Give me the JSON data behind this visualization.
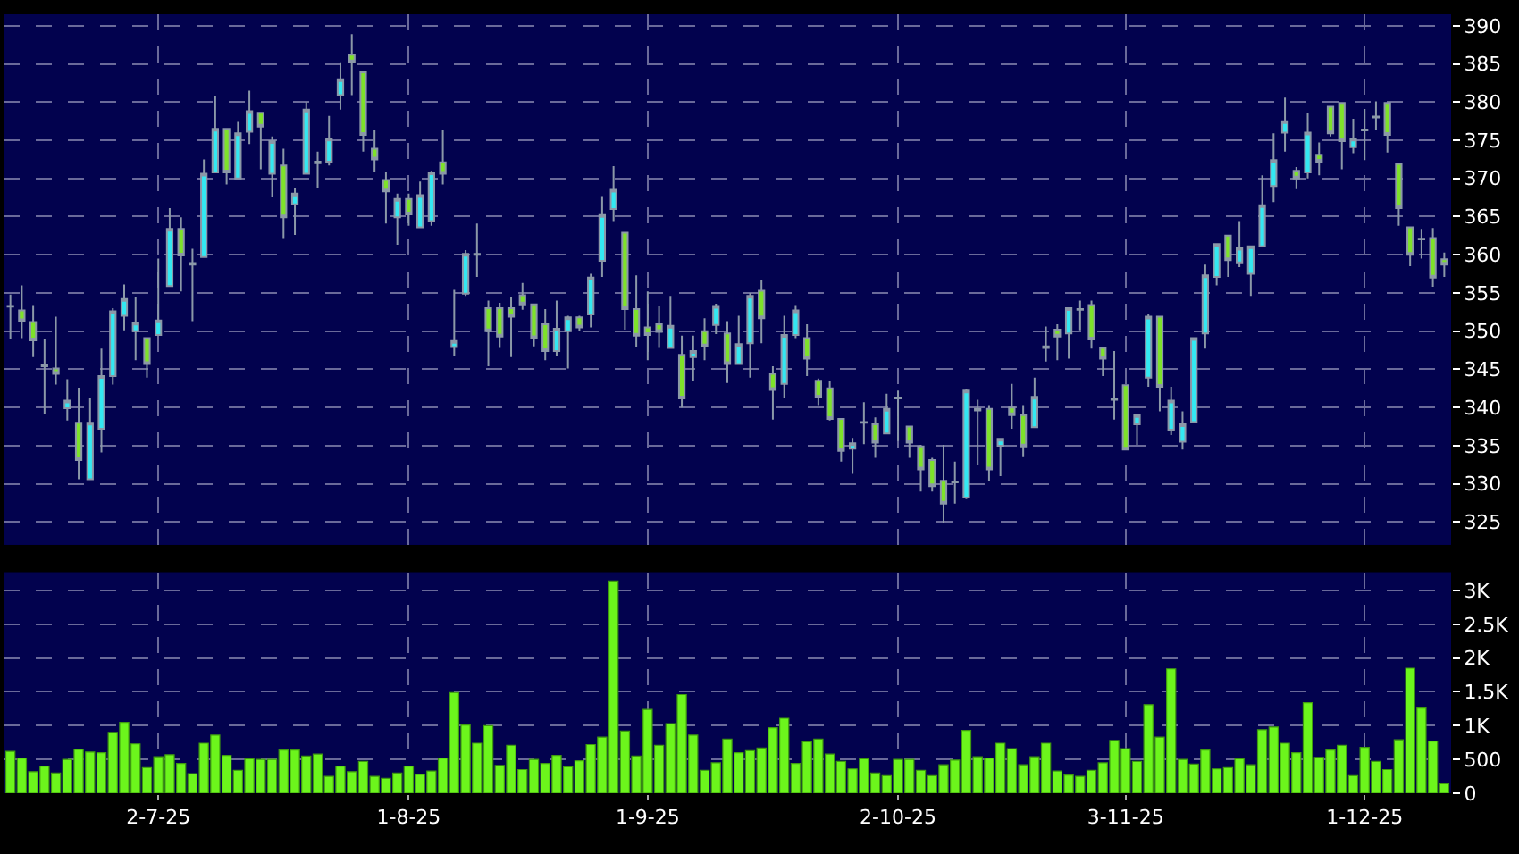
{
  "chart_data": [
    {
      "type": "candlestick",
      "categories": [
        null,
        null,
        null,
        null,
        null,
        null,
        null,
        null,
        null,
        null,
        null,
        null,
        null,
        null,
        null,
        null,
        null,
        null,
        null,
        null,
        null,
        null,
        null,
        null,
        null,
        null,
        null,
        null,
        null,
        null,
        null,
        null,
        null,
        null,
        null,
        null,
        null,
        null,
        null,
        null,
        null,
        null,
        null,
        null,
        null,
        null,
        null,
        null,
        null,
        null,
        null,
        null,
        null,
        null,
        null,
        null,
        null,
        null,
        null,
        null,
        null,
        null,
        null,
        null,
        null,
        null,
        null,
        null,
        null,
        null,
        null,
        null,
        null,
        null,
        null,
        null,
        null,
        null,
        null,
        null,
        null,
        null,
        null,
        null,
        null,
        null,
        null,
        null,
        null,
        null,
        null,
        null,
        null,
        null,
        null,
        null,
        null,
        null,
        null,
        null,
        null,
        null,
        null,
        null,
        null,
        null,
        null,
        null,
        null,
        null,
        null,
        null,
        null,
        null,
        null,
        null,
        null,
        null,
        null,
        null,
        null,
        null,
        null,
        null,
        null,
        null,
        null
      ],
      "ohlc": [
        [
          353.2,
          354.8,
          348.9,
          353.3
        ],
        [
          352.7,
          356,
          349.1,
          351.3
        ],
        [
          351.2,
          353.4,
          346.6,
          348.8
        ],
        [
          345.4,
          348.9,
          339.2,
          345.6
        ],
        [
          345.1,
          351.9,
          343,
          344.4
        ],
        [
          339.9,
          343.7,
          338.3,
          340.9
        ],
        [
          338,
          342.6,
          330.6,
          333.1
        ],
        [
          330.6,
          341.2,
          330.6,
          338
        ],
        [
          337.2,
          347.7,
          334.1,
          344.1
        ],
        [
          344.1,
          353,
          343,
          352.6
        ],
        [
          352,
          356.1,
          350.1,
          354.2
        ],
        [
          350,
          354.4,
          346.2,
          351.1
        ],
        [
          349.1,
          349.1,
          343.9,
          345.7
        ],
        [
          349.5,
          359.5,
          349.5,
          351.4
        ],
        [
          355.9,
          366.1,
          355.9,
          363.4
        ],
        [
          363.4,
          364.9,
          355.2,
          359.9
        ],
        [
          358.9,
          360.8,
          351.3,
          358.7
        ],
        [
          359.7,
          372.5,
          359.7,
          370.6
        ],
        [
          370.8,
          380.8,
          370.8,
          376.5
        ],
        [
          376.5,
          376.5,
          369.2,
          370.8
        ],
        [
          370,
          377.4,
          370,
          375.9
        ],
        [
          376.1,
          381.5,
          374.5,
          378.8
        ],
        [
          378.6,
          378.6,
          371.2,
          376.8
        ],
        [
          370.6,
          375.5,
          367.6,
          374.9
        ],
        [
          371.7,
          373.9,
          362.2,
          364.9
        ],
        [
          366.6,
          368.8,
          362.6,
          368
        ],
        [
          370.6,
          380,
          370.6,
          379
        ],
        [
          372,
          373.5,
          368.8,
          372.2
        ],
        [
          372.2,
          378.2,
          371.7,
          375.2
        ],
        [
          380.9,
          385.2,
          379,
          383
        ],
        [
          386.2,
          388.9,
          380.9,
          385.2
        ],
        [
          383.9,
          384,
          373.5,
          375.7
        ],
        [
          373.9,
          376.4,
          370.8,
          372.5
        ],
        [
          369.8,
          370.8,
          364.1,
          368.3
        ],
        [
          364.9,
          368,
          361.3,
          367.3
        ],
        [
          367.3,
          368,
          363.8,
          365.3
        ],
        [
          363.6,
          369.6,
          363.5,
          367.8
        ],
        [
          364.4,
          371,
          363.8,
          370.8
        ],
        [
          372.1,
          376.4,
          369.2,
          370.6
        ],
        [
          347.9,
          355.4,
          346.8,
          348.7
        ],
        [
          354.9,
          360.6,
          354.6,
          360.1
        ],
        [
          360,
          364.1,
          357.1,
          360.1
        ],
        [
          353,
          354,
          345.4,
          350
        ],
        [
          353,
          353.7,
          347.8,
          349.3
        ],
        [
          353,
          354.4,
          346.6,
          351.9
        ],
        [
          354.7,
          356.3,
          352.8,
          353.5
        ],
        [
          353.5,
          353.6,
          348,
          349.1
        ],
        [
          350.9,
          352.9,
          346.2,
          347.4
        ],
        [
          347.4,
          354,
          346.7,
          350.3
        ],
        [
          350,
          352,
          345.1,
          351.8
        ],
        [
          351.8,
          352,
          350,
          350.5
        ],
        [
          352.2,
          357.5,
          350.5,
          357
        ],
        [
          359.2,
          367.7,
          357.1,
          365.2
        ],
        [
          366,
          371.6,
          364.4,
          368.5
        ],
        [
          362.9,
          363,
          350.2,
          352.9
        ],
        [
          352.9,
          357.3,
          347.9,
          349.4
        ],
        [
          350.5,
          355.2,
          346.2,
          349.5
        ],
        [
          350.9,
          353.3,
          347.8,
          349.9
        ],
        [
          347.8,
          354.6,
          347.7,
          350.7
        ],
        [
          346.9,
          349.4,
          340,
          341.2
        ],
        [
          346.6,
          349.4,
          343.5,
          347.4
        ],
        [
          350,
          351.7,
          346.2,
          348
        ],
        [
          350.8,
          353.6,
          349.6,
          353.3
        ],
        [
          349.7,
          351.3,
          343.2,
          345.7
        ],
        [
          345.7,
          352,
          345.7,
          348.3
        ],
        [
          348.4,
          355,
          343.9,
          354.6
        ],
        [
          355.3,
          356.7,
          348.4,
          351.7
        ],
        [
          344.4,
          345.4,
          338.4,
          342.3
        ],
        [
          343.1,
          352,
          341.2,
          349.5
        ],
        [
          349.5,
          353.4,
          349.1,
          352.7
        ],
        [
          349.1,
          350.9,
          344.1,
          346.4
        ],
        [
          343.5,
          343.8,
          340.3,
          341.3
        ],
        [
          342.5,
          343.5,
          338.3,
          338.5
        ],
        [
          338.5,
          338.6,
          332.9,
          334.3
        ],
        [
          334.6,
          336,
          331.3,
          335.3
        ],
        [
          338,
          340.7,
          335.2,
          338.1
        ],
        [
          337.8,
          338.7,
          333.4,
          335.4
        ],
        [
          336.6,
          341.8,
          336.5,
          339.8
        ],
        [
          341.2,
          342.2,
          335.6,
          341.3
        ],
        [
          337.5,
          337.6,
          333.4,
          335.4
        ],
        [
          334.9,
          335.1,
          329,
          331.9
        ],
        [
          333.1,
          333.4,
          329,
          329.7
        ],
        [
          330.4,
          335.1,
          324.9,
          327.4
        ],
        [
          330.2,
          332.9,
          327.4,
          330.3
        ],
        [
          328.2,
          342.4,
          328,
          342.2
        ],
        [
          339.8,
          341,
          332.5,
          339.6
        ],
        [
          339.8,
          340.3,
          330.3,
          331.9
        ],
        [
          335,
          336,
          331,
          335.9
        ],
        [
          340,
          343.1,
          337.2,
          339
        ],
        [
          339,
          340.3,
          333.5,
          334.9
        ],
        [
          337.4,
          343.9,
          337.3,
          341.4
        ],
        [
          347.8,
          350.6,
          346,
          348
        ],
        [
          350.2,
          350.9,
          346.2,
          349.3
        ],
        [
          349.7,
          353.1,
          346.4,
          353
        ],
        [
          352.8,
          354,
          350.1,
          352.9
        ],
        [
          353.4,
          354,
          347.7,
          348.9
        ],
        [
          347.8,
          347.9,
          344.1,
          346.4
        ],
        [
          341,
          347.4,
          338.4,
          341.1
        ],
        [
          342.9,
          342.9,
          334.5,
          334.5
        ],
        [
          337.8,
          339.1,
          335.1,
          339
        ],
        [
          343.9,
          352.2,
          342.7,
          351.9
        ],
        [
          351.9,
          352,
          339.5,
          342.7
        ],
        [
          337.1,
          342.7,
          336.4,
          340.9
        ],
        [
          335.5,
          339.5,
          334.5,
          337.8
        ],
        [
          338.1,
          349.1,
          338.1,
          349.1
        ],
        [
          349.7,
          358.7,
          347.7,
          357.3
        ],
        [
          357.1,
          361.5,
          356,
          361.4
        ],
        [
          362.5,
          362.6,
          357.1,
          359.3
        ],
        [
          359,
          364.4,
          358.4,
          360.9
        ],
        [
          357.5,
          361.2,
          354.6,
          361.1
        ],
        [
          361.1,
          370.4,
          361.1,
          366.5
        ],
        [
          369,
          375.9,
          366.9,
          372.4
        ],
        [
          376,
          380.6,
          373.5,
          377.5
        ],
        [
          371,
          371.5,
          368.6,
          370
        ],
        [
          370.8,
          378.6,
          370,
          376
        ],
        [
          373.1,
          374.7,
          370.4,
          372.2
        ],
        [
          379.4,
          379.5,
          375.5,
          375.9
        ],
        [
          379.9,
          380,
          371.2,
          374.9
        ],
        [
          374.1,
          377.8,
          373.3,
          375.2
        ],
        [
          376.3,
          379.1,
          372.4,
          376.4
        ],
        [
          378,
          380.1,
          376.3,
          378.1
        ],
        [
          379.9,
          380,
          373.4,
          375.7
        ],
        [
          371.9,
          372,
          363.8,
          366.1
        ],
        [
          363.6,
          363.7,
          358.5,
          360
        ],
        [
          362,
          363.4,
          359.5,
          362.1
        ],
        [
          362.2,
          363.5,
          355.8,
          357
        ],
        [
          359.4,
          360.3,
          357.1,
          358.7
        ]
      ],
      "colors": [
        "#8b98a8",
        "#7ee22a",
        "#7ee22a",
        "#8b98a8",
        "#7ee22a",
        "#33e8f2",
        "#7ee22a",
        "#33e8f2",
        "#33e8f2",
        "#33e8f2",
        "#33e8f2",
        "#33e8f2",
        "#7ee22a",
        "#33e8f2",
        "#33e8f2",
        "#7ee22a",
        "#8b98a8",
        "#33e8f2",
        "#33e8f2",
        "#7ee22a",
        "#33e8f2",
        "#33e8f2",
        "#7ee22a",
        "#33e8f2",
        "#7ee22a",
        "#33e8f2",
        "#33e8f2",
        "#8b98a8",
        "#33e8f2",
        "#33e8f2",
        "#7ee22a",
        "#7ee22a",
        "#7ee22a",
        "#7ee22a",
        "#33e8f2",
        "#7ee22a",
        "#33e8f2",
        "#33e8f2",
        "#7ee22a",
        "#33e8f2",
        "#33e8f2",
        "#8b98a8",
        "#7ee22a",
        "#7ee22a",
        "#7ee22a",
        "#7ee22a",
        "#7ee22a",
        "#7ee22a",
        "#33e8f2",
        "#33e8f2",
        "#7ee22a",
        "#33e8f2",
        "#33e8f2",
        "#33e8f2",
        "#7ee22a",
        "#7ee22a",
        "#7ee22a",
        "#7ee22a",
        "#33e8f2",
        "#7ee22a",
        "#33e8f2",
        "#7ee22a",
        "#33e8f2",
        "#7ee22a",
        "#33e8f2",
        "#33e8f2",
        "#7ee22a",
        "#7ee22a",
        "#33e8f2",
        "#33e8f2",
        "#7ee22a",
        "#7ee22a",
        "#7ee22a",
        "#7ee22a",
        "#33e8f2",
        "#8b98a8",
        "#7ee22a",
        "#33e8f2",
        "#8b98a8",
        "#7ee22a",
        "#7ee22a",
        "#7ee22a",
        "#7ee22a",
        "#8b98a8",
        "#33e8f2",
        "#8b98a8",
        "#7ee22a",
        "#33e8f2",
        "#7ee22a",
        "#7ee22a",
        "#33e8f2",
        "#8b98a8",
        "#7ee22a",
        "#33e8f2",
        "#8b98a8",
        "#7ee22a",
        "#7ee22a",
        "#8b98a8",
        "#7ee22a",
        "#33e8f2",
        "#33e8f2",
        "#7ee22a",
        "#33e8f2",
        "#33e8f2",
        "#33e8f2",
        "#33e8f2",
        "#33e8f2",
        "#7ee22a",
        "#33e8f2",
        "#33e8f2",
        "#33e8f2",
        "#33e8f2",
        "#33e8f2",
        "#7ee22a",
        "#33e8f2",
        "#7ee22a",
        "#7ee22a",
        "#7ee22a",
        "#33e8f2",
        "#8b98a8",
        "#8b98a8",
        "#7ee22a",
        "#7ee22a",
        "#7ee22a",
        "#8b98a8",
        "#7ee22a",
        "#7ee22a"
      ],
      "ylim": [
        322,
        391.5
      ],
      "yticks": [
        325,
        330,
        335,
        340,
        345,
        350,
        355,
        360,
        365,
        370,
        375,
        380,
        385,
        390
      ],
      "grid": true,
      "tick_labels": "y"
    },
    {
      "type": "bar",
      "categories": [
        null,
        null,
        null,
        null,
        null,
        null,
        null,
        null,
        null,
        null,
        null,
        null,
        null,
        "2-7-25",
        null,
        null,
        null,
        null,
        null,
        null,
        null,
        null,
        null,
        null,
        null,
        null,
        null,
        null,
        null,
        null,
        null,
        null,
        null,
        null,
        null,
        "1-8-25",
        null,
        null,
        null,
        null,
        null,
        null,
        null,
        null,
        null,
        null,
        null,
        null,
        null,
        null,
        null,
        null,
        null,
        null,
        null,
        null,
        "1-9-25",
        null,
        null,
        null,
        null,
        null,
        null,
        null,
        null,
        null,
        null,
        null,
        null,
        null,
        null,
        null,
        null,
        null,
        null,
        null,
        null,
        null,
        "2-10-25",
        null,
        null,
        null,
        null,
        null,
        null,
        null,
        null,
        null,
        null,
        null,
        null,
        null,
        null,
        null,
        null,
        null,
        null,
        null,
        "3-11-25",
        null,
        null,
        null,
        null,
        null,
        null,
        null,
        null,
        null,
        null,
        null,
        null,
        null,
        null,
        null,
        null,
        null,
        null,
        null,
        null,
        "1-12-25",
        null,
        null,
        null,
        null,
        null,
        null,
        null
      ],
      "values": [
        620,
        520,
        320,
        400,
        300,
        500,
        650,
        610,
        600,
        900,
        1050,
        730,
        380,
        540,
        570,
        440,
        290,
        740,
        860,
        560,
        340,
        510,
        500,
        500,
        640,
        640,
        550,
        580,
        250,
        400,
        320,
        470,
        250,
        220,
        300,
        400,
        280,
        330,
        520,
        1490,
        1010,
        740,
        1000,
        410,
        710,
        350,
        500,
        440,
        560,
        390,
        480,
        720,
        830,
        3140,
        920,
        550,
        1240,
        710,
        1030,
        1460,
        860,
        340,
        450,
        800,
        600,
        630,
        670,
        970,
        1110,
        440,
        760,
        800,
        580,
        470,
        360,
        510,
        300,
        260,
        500,
        500,
        340,
        260,
        420,
        490,
        930,
        540,
        520,
        740,
        660,
        420,
        540,
        740,
        330,
        270,
        250,
        340,
        450,
        780,
        660,
        470,
        1310,
        830,
        1840,
        500,
        430,
        640,
        360,
        380,
        510,
        420,
        940,
        980,
        740,
        600,
        1340,
        530,
        640,
        710,
        260,
        680,
        470,
        350,
        790,
        1850,
        1260,
        770,
        140
      ],
      "color": "#6cf51c",
      "ylim": [
        0,
        3270
      ],
      "yticks": [
        0,
        500,
        {
          "value": 1000,
          "label": "1K"
        },
        {
          "value": 1500,
          "label": "1.5K"
        },
        {
          "value": 2000,
          "label": "2K"
        },
        {
          "value": 2500,
          "label": "2.5K"
        },
        {
          "value": 3000,
          "label": "3K"
        }
      ],
      "grid": true
    }
  ]
}
